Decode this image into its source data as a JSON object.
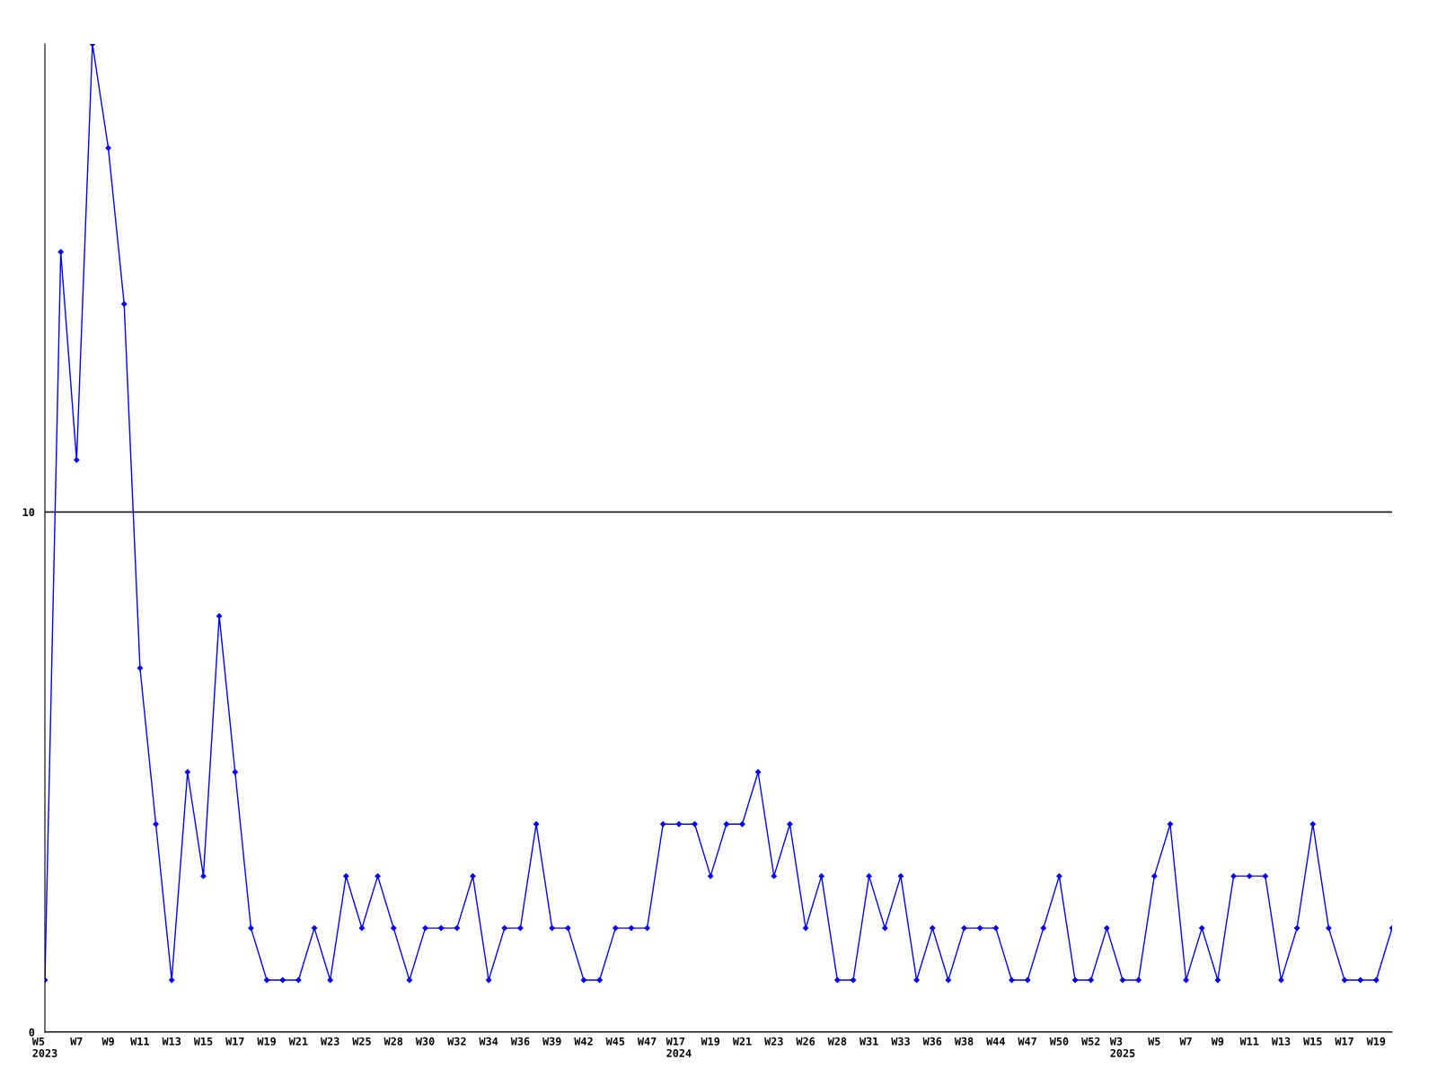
{
  "chart_data": {
    "type": "line",
    "categories": [
      "W5\n2023",
      null,
      "W7",
      null,
      "W9",
      null,
      "W11",
      null,
      "W13",
      null,
      "W15",
      null,
      "W17",
      null,
      "W19",
      null,
      "W21",
      null,
      "W23",
      null,
      "W25",
      null,
      "W28",
      null,
      "W30",
      null,
      "W32",
      null,
      "W34",
      null,
      "W36",
      null,
      "W39",
      null,
      "W42",
      null,
      "W45",
      null,
      "W47",
      null,
      "W17\n2024",
      null,
      "W19",
      null,
      "W21",
      null,
      "W23",
      null,
      "W26",
      null,
      "W28",
      null,
      "W31",
      null,
      "W33",
      null,
      "W36",
      null,
      "W38",
      null,
      "W44",
      null,
      "W47",
      null,
      "W50",
      null,
      "W52",
      null,
      "W3\n2025",
      null,
      "W5",
      null,
      "W7",
      null,
      "W9",
      null,
      "W11",
      null,
      "W13",
      null,
      "W15",
      null,
      "W17",
      null,
      "W19",
      null
    ],
    "series": [
      {
        "color": "#0000ff",
        "values": [
          1,
          15,
          11,
          19,
          17,
          14,
          7,
          4,
          1,
          5,
          3,
          8,
          5,
          2,
          1,
          1,
          1,
          2,
          1,
          3,
          2,
          3,
          2,
          1,
          2,
          2,
          2,
          3,
          1,
          2,
          2,
          4,
          2,
          2,
          1,
          1,
          2,
          2,
          2,
          4,
          4,
          4,
          3,
          4,
          4,
          5,
          3,
          4,
          2,
          3,
          1,
          1,
          3,
          2,
          3,
          1,
          2,
          1,
          2,
          2,
          2,
          1,
          1,
          2,
          3,
          1,
          1,
          2,
          1,
          1,
          3,
          4,
          1,
          2,
          1,
          3,
          3,
          3,
          1,
          2,
          4,
          2,
          1,
          1,
          1,
          2
        ]
      }
    ],
    "ylim": [
      0,
      19
    ],
    "yticks": [
      0,
      10
    ],
    "grid": "y",
    "marker": "diamond",
    "line_style": "solid"
  }
}
